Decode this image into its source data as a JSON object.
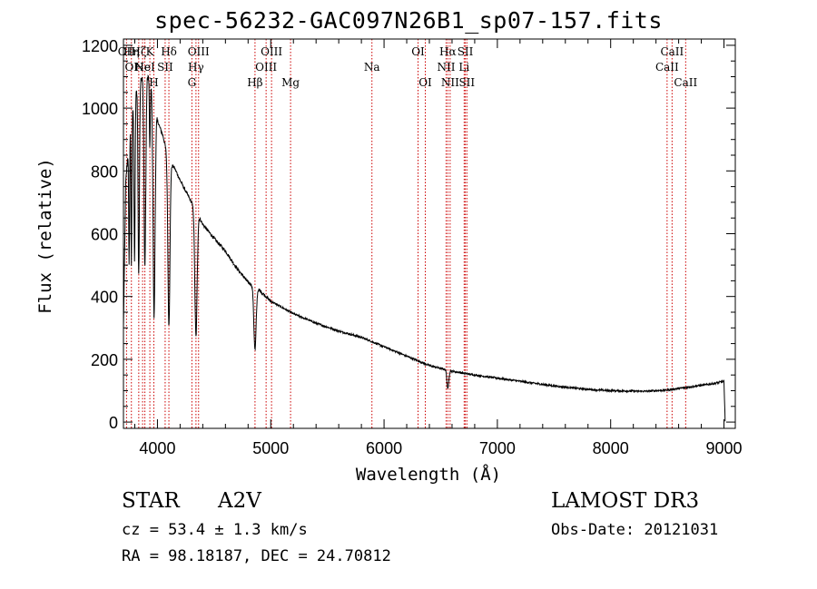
{
  "title": "spec-56232-GAC097N26B1_sp07-157.fits",
  "chart_data": {
    "type": "line",
    "xlabel": "Wavelength (Å)",
    "ylabel": "Flux (relative)",
    "xlim": [
      3700,
      9100
    ],
    "ylim": [
      -20,
      1220
    ],
    "xticks": [
      4000,
      5000,
      6000,
      7000,
      8000,
      9000
    ],
    "yticks": [
      0,
      200,
      400,
      600,
      800,
      1000,
      1200
    ],
    "continuum": [
      [
        3700,
        300
      ],
      [
        3720,
        760
      ],
      [
        3760,
        960
      ],
      [
        3800,
        1040
      ],
      [
        3850,
        1090
      ],
      [
        3880,
        1120
      ],
      [
        3920,
        1100
      ],
      [
        3960,
        1060
      ],
      [
        4000,
        960
      ],
      [
        4050,
        910
      ],
      [
        4100,
        830
      ],
      [
        4150,
        810
      ],
      [
        4200,
        770
      ],
      [
        4300,
        700
      ],
      [
        4400,
        630
      ],
      [
        4500,
        585
      ],
      [
        4600,
        545
      ],
      [
        4700,
        490
      ],
      [
        4800,
        445
      ],
      [
        4900,
        420
      ],
      [
        5000,
        385
      ],
      [
        5200,
        345
      ],
      [
        5400,
        315
      ],
      [
        5600,
        290
      ],
      [
        5800,
        270
      ],
      [
        6000,
        240
      ],
      [
        6200,
        210
      ],
      [
        6400,
        180
      ],
      [
        6600,
        162
      ],
      [
        6800,
        150
      ],
      [
        7000,
        140
      ],
      [
        7200,
        130
      ],
      [
        7500,
        115
      ],
      [
        7800,
        104
      ],
      [
        8000,
        100
      ],
      [
        8300,
        98
      ],
      [
        8500,
        102
      ],
      [
        8700,
        112
      ],
      [
        8900,
        122
      ],
      [
        9000,
        130
      ],
      [
        9010,
        5
      ]
    ],
    "absorption_lines": [
      {
        "center": 3750,
        "depth": 400,
        "width": 4
      },
      {
        "center": 3770,
        "depth": 480,
        "width": 4
      },
      {
        "center": 3798,
        "depth": 520,
        "width": 5
      },
      {
        "center": 3835,
        "depth": 600,
        "width": 6
      },
      {
        "center": 3889,
        "depth": 620,
        "width": 8
      },
      {
        "center": 3933,
        "depth": 220,
        "width": 4
      },
      {
        "center": 3970,
        "depth": 700,
        "width": 9
      },
      {
        "center": 4101,
        "depth": 520,
        "width": 9
      },
      {
        "center": 4340,
        "depth": 400,
        "width": 10
      },
      {
        "center": 4861,
        "depth": 200,
        "width": 10
      },
      {
        "center": 6563,
        "depth": 60,
        "width": 8
      }
    ],
    "line_markers": [
      {
        "wl": 3727,
        "rows": [
          "OII"
        ]
      },
      {
        "wl": 3770,
        "rows": [
          "Hη",
          "OI"
        ]
      },
      {
        "wl": 3835,
        "rows": [
          "Hζ"
        ]
      },
      {
        "wl": 3869,
        "rows": [
          "",
          "Ne"
        ]
      },
      {
        "wl": 3889,
        "rows": [
          "",
          "HeI"
        ]
      },
      {
        "wl": 3933,
        "rows": [
          "K"
        ]
      },
      {
        "wl": 3968,
        "rows": [
          "",
          "",
          "H"
        ]
      },
      {
        "wl": 4068,
        "rows": [
          "",
          "SII"
        ]
      },
      {
        "wl": 4101,
        "rows": [
          "Hδ"
        ]
      },
      {
        "wl": 4304,
        "rows": [
          "",
          "",
          "G"
        ]
      },
      {
        "wl": 4340,
        "rows": [
          "",
          "Hγ"
        ]
      },
      {
        "wl": 4363,
        "rows": [
          "OIII"
        ]
      },
      {
        "wl": 4861,
        "rows": [
          "",
          "",
          "Hβ"
        ]
      },
      {
        "wl": 4959,
        "rows": [
          "",
          "OIII"
        ]
      },
      {
        "wl": 5007,
        "rows": [
          "OIII"
        ]
      },
      {
        "wl": 5175,
        "rows": [
          "",
          "",
          "Mg"
        ]
      },
      {
        "wl": 5893,
        "rows": [
          "",
          "Na"
        ]
      },
      {
        "wl": 6300,
        "rows": [
          "OI"
        ]
      },
      {
        "wl": 6364,
        "rows": [
          "",
          "",
          "OI"
        ]
      },
      {
        "wl": 6548,
        "rows": [
          "",
          "NII"
        ]
      },
      {
        "wl": 6563,
        "rows": [
          "Hα"
        ]
      },
      {
        "wl": 6583,
        "rows": [
          "",
          "",
          "NII"
        ]
      },
      {
        "wl": 6707,
        "rows": [
          "",
          "Li"
        ]
      },
      {
        "wl": 6717,
        "rows": [
          "SII"
        ]
      },
      {
        "wl": 6731,
        "rows": [
          "",
          "",
          "SII"
        ]
      },
      {
        "wl": 8498,
        "rows": [
          "",
          "CaII"
        ]
      },
      {
        "wl": 8542,
        "rows": [
          "CaII"
        ]
      },
      {
        "wl": 8662,
        "rows": [
          "",
          "",
          "CaII"
        ]
      }
    ]
  },
  "info": {
    "class": "STAR",
    "subclass": "A2V",
    "survey": "LAMOST DR3",
    "cz": "cz = 53.4 ± 1.3 km/s",
    "obs_date": "Obs-Date: 20121031",
    "radec": "RA =  98.18187, DEC =  24.70812"
  },
  "colors": {
    "marker": "#cc0000",
    "spectrum": "#000000",
    "axis": "#000000"
  }
}
